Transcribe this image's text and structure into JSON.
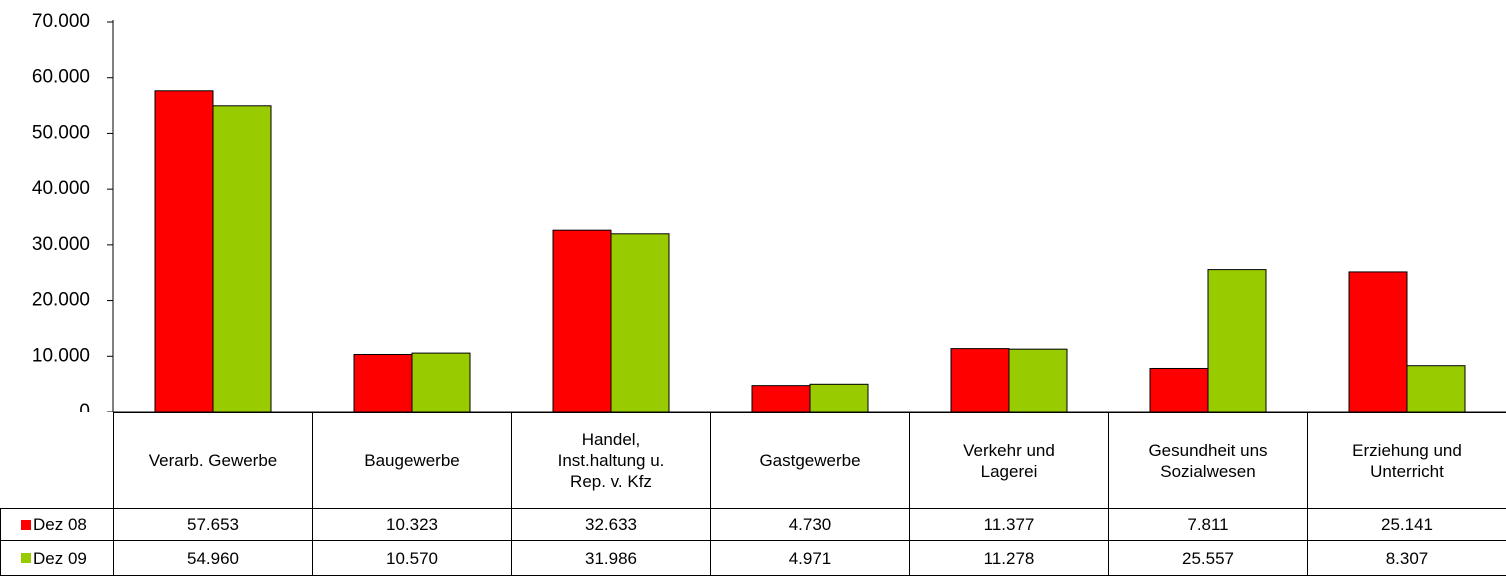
{
  "chart_data": {
    "type": "bar",
    "categories": [
      "Verarb. Gewerbe",
      "Baugewerbe",
      "Handel,\nInst.haltung u.\nRep. v. Kfz",
      "Gastgewerbe",
      "Verkehr und\nLagerei",
      "Gesundheit uns\nSozialwesen",
      "Erziehung und\nUnterricht"
    ],
    "series": [
      {
        "name": "Dez 08",
        "color": "#ff0000",
        "values": [
          57653,
          10323,
          32633,
          4730,
          11377,
          7811,
          25141
        ],
        "value_labels": [
          "57.653",
          "10.323",
          "32.633",
          "4.730",
          "11.377",
          "7.811",
          "25.141"
        ]
      },
      {
        "name": "Dez 09",
        "color": "#99cc00",
        "values": [
          54960,
          10570,
          31986,
          4971,
          11278,
          25557,
          8307
        ],
        "value_labels": [
          "54.960",
          "10.570",
          "31.986",
          "4.971",
          "11.278",
          "25.557",
          "8.307"
        ]
      }
    ],
    "ylim": [
      0,
      70000
    ],
    "yticks": [
      0,
      {
        "value": 10000,
        "label": "10.000"
      },
      {
        "value": 20000,
        "label": "20.000"
      },
      {
        "value": 30000,
        "label": "30.000"
      },
      {
        "value": 40000,
        "label": "40.000"
      },
      {
        "value": 50000,
        "label": "50.000"
      },
      {
        "value": 60000,
        "label": "60.000"
      },
      {
        "value": 70000,
        "label": "70.000"
      }
    ]
  }
}
